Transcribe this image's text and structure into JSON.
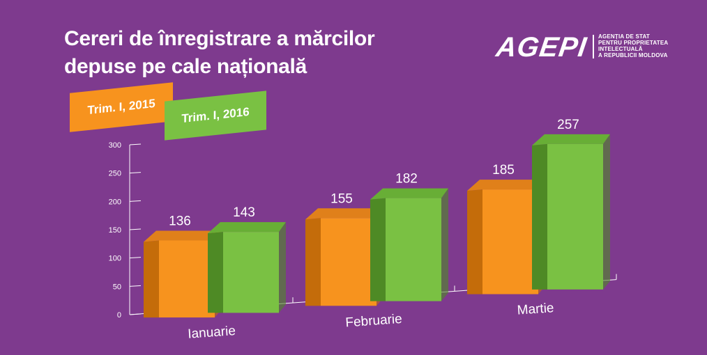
{
  "header": {
    "title_line1": "Cereri de înregistrare a mărcilor",
    "title_line2": "depuse pe cale națională"
  },
  "logo": {
    "mark": "AGEPI",
    "lines": [
      "AGENȚIA DE STAT",
      "PENTRU PROPRIETATEA",
      "INTELECTUALĂ",
      "A REPUBLICII MOLDOVA"
    ]
  },
  "colors": {
    "background": "#7E3A8E",
    "series_2015_front": "#F7931E",
    "series_2015_side": "#C46C0A",
    "series_2015_top": "#E0801A",
    "series_2016_front": "#7AC143",
    "series_2016_side": "#4E8A25",
    "series_2016_top": "#68AE36"
  },
  "chart_data": {
    "type": "bar",
    "categories": [
      "Ianuarie",
      "Februarie",
      "Martie"
    ],
    "series": [
      {
        "name": "Trim. I, 2015",
        "values": [
          136,
          155,
          185
        ]
      },
      {
        "name": "Trim. I, 2016",
        "values": [
          143,
          182,
          257
        ]
      }
    ],
    "yticks": [
      0,
      50,
      100,
      150,
      200,
      250,
      300
    ],
    "ylim": [
      0,
      300
    ],
    "title": "Cereri de înregistrare a mărcilor depuse pe cale națională",
    "xlabel": "",
    "ylabel": "",
    "grid": false,
    "legend_position": "top-left"
  }
}
